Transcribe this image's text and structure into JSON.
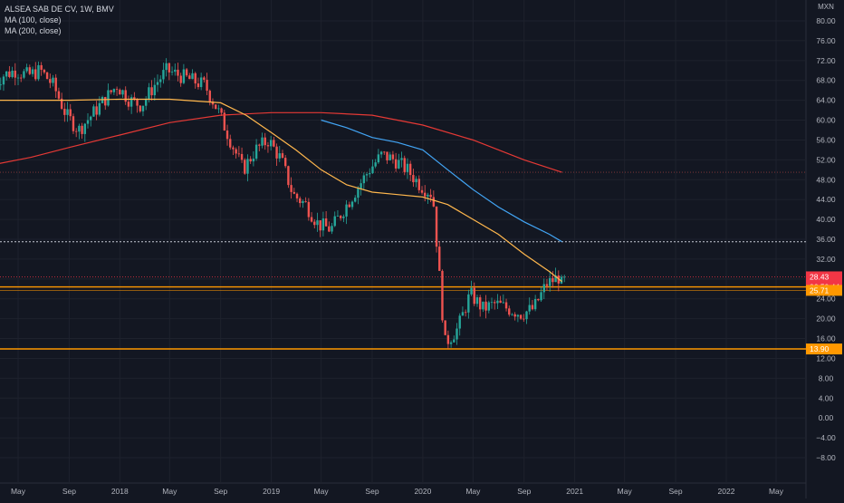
{
  "header": {
    "title": "ALSEA SAB DE CV, 1W, BMV",
    "indicator1": "MA (100, close)",
    "indicator2": "MA (200, close)"
  },
  "chart_data": {
    "type": "candlestick",
    "currency": "MXN",
    "y_ticks": [
      "80.00",
      "76.00",
      "72.00",
      "68.00",
      "64.00",
      "60.00",
      "56.00",
      "52.00",
      "48.00",
      "44.00",
      "40.00",
      "36.00",
      "32.00",
      "28.00",
      "24.00",
      "20.00",
      "16.00",
      "12.00",
      "8.00",
      "4.00",
      "0.00",
      "−4.00",
      "−8.00"
    ],
    "ylim": [
      -8,
      80
    ],
    "x_ticks": [
      {
        "label": "May",
        "date": "2017-05"
      },
      {
        "label": "Sep",
        "date": "2017-09"
      },
      {
        "label": "2018",
        "date": "2018-01"
      },
      {
        "label": "May",
        "date": "2018-05"
      },
      {
        "label": "Sep",
        "date": "2018-09"
      },
      {
        "label": "2019",
        "date": "2019-01"
      },
      {
        "label": "May",
        "date": "2019-05"
      },
      {
        "label": "Sep",
        "date": "2019-09"
      },
      {
        "label": "2020",
        "date": "2020-01"
      },
      {
        "label": "May",
        "date": "2020-05"
      },
      {
        "label": "Sep",
        "date": "2020-09"
      },
      {
        "label": "2021",
        "date": "2021-01"
      },
      {
        "label": "May",
        "date": "2021-05"
      },
      {
        "label": "Sep",
        "date": "2021-09"
      },
      {
        "label": "2022",
        "date": "2022-01"
      },
      {
        "label": "May",
        "date": "2022-05"
      }
    ],
    "price_path": [
      [
        "2017-03",
        66
      ],
      [
        "2017-04",
        69
      ],
      [
        "2017-05",
        70
      ],
      [
        "2017-06",
        69
      ],
      [
        "2017-07",
        70
      ],
      [
        "2017-08",
        67
      ],
      [
        "2017-09",
        61
      ],
      [
        "2017-10",
        58
      ],
      [
        "2017-11",
        61
      ],
      [
        "2017-12",
        64
      ],
      [
        "2018-01",
        67
      ],
      [
        "2018-02",
        64
      ],
      [
        "2018-03",
        63
      ],
      [
        "2018-04",
        67
      ],
      [
        "2018-05",
        70
      ],
      [
        "2018-06",
        69
      ],
      [
        "2018-07",
        68
      ],
      [
        "2018-08",
        67
      ],
      [
        "2018-09",
        62
      ],
      [
        "2018-10",
        56
      ],
      [
        "2018-11",
        50
      ],
      [
        "2018-12",
        54
      ],
      [
        "2019-01",
        56
      ],
      [
        "2019-02",
        52
      ],
      [
        "2019-03",
        45
      ],
      [
        "2019-04",
        43
      ],
      [
        "2019-05",
        39
      ],
      [
        "2019-06",
        38
      ],
      [
        "2019-07",
        42
      ],
      [
        "2019-08",
        46
      ],
      [
        "2019-09",
        50
      ],
      [
        "2019-10",
        53
      ],
      [
        "2019-11",
        52
      ],
      [
        "2019-12",
        50
      ],
      [
        "2020-01",
        47
      ],
      [
        "2020-02",
        45
      ],
      [
        "2020-03",
        15
      ],
      [
        "2020-04",
        18
      ],
      [
        "2020-05",
        25
      ],
      [
        "2020-06",
        22
      ],
      [
        "2020-07",
        23
      ],
      [
        "2020-08",
        22
      ],
      [
        "2020-09",
        21
      ],
      [
        "2020-10",
        22
      ],
      [
        "2020-11",
        27
      ],
      [
        "2020-12",
        28.43
      ]
    ],
    "ma100": [
      [
        "2017-03",
        64
      ],
      [
        "2017-09",
        64
      ],
      [
        "2018-01",
        64.2
      ],
      [
        "2018-05",
        64.2
      ],
      [
        "2018-09",
        63.5
      ],
      [
        "2018-11",
        61
      ],
      [
        "2019-01",
        57.5
      ],
      [
        "2019-03",
        54
      ],
      [
        "2019-05",
        50
      ],
      [
        "2019-07",
        47
      ],
      [
        "2019-09",
        45.5
      ],
      [
        "2019-11",
        45
      ],
      [
        "2020-01",
        44.5
      ],
      [
        "2020-03",
        43
      ],
      [
        "2020-05",
        40
      ],
      [
        "2020-07",
        37
      ],
      [
        "2020-09",
        33
      ],
      [
        "2020-11",
        29.5
      ],
      [
        "2020-12",
        27.5
      ]
    ],
    "ma200": [
      [
        "2017-03",
        51
      ],
      [
        "2017-06",
        52.5
      ],
      [
        "2017-09",
        54.5
      ],
      [
        "2018-01",
        57
      ],
      [
        "2018-05",
        59.5
      ],
      [
        "2018-09",
        61
      ],
      [
        "2019-01",
        61.5
      ],
      [
        "2019-05",
        61.5
      ],
      [
        "2019-09",
        61
      ],
      [
        "2020-01",
        59
      ],
      [
        "2020-05",
        56
      ],
      [
        "2020-09",
        52
      ],
      [
        "2020-12",
        49.5
      ]
    ],
    "ma100_late": [
      [
        "2019-05",
        60
      ],
      [
        "2019-07",
        58.5
      ],
      [
        "2019-09",
        56.5
      ],
      [
        "2019-11",
        55.5
      ],
      [
        "2020-01",
        54
      ],
      [
        "2020-03",
        50
      ],
      [
        "2020-05",
        46
      ],
      [
        "2020-07",
        42.5
      ],
      [
        "2020-09",
        39.5
      ],
      [
        "2020-11",
        37
      ],
      [
        "2020-12",
        35.5
      ]
    ],
    "levels": [
      {
        "label": "28.43",
        "value": 28.43,
        "color": "#f23645"
      },
      {
        "label": "06:50:44",
        "value": 26.4,
        "color": "#f23645"
      },
      {
        "label": "25.71",
        "value": 25.71,
        "color": "#ff9800"
      },
      {
        "label": "13.90",
        "value": 13.9,
        "color": "#ff9800"
      }
    ],
    "dotted_levels": [
      49.5,
      35.5
    ],
    "colors": {
      "up": "#26a69a",
      "down": "#ef5350",
      "ma_orange": "#ffb74d",
      "ma_blue": "#42a5f5",
      "ma_red": "#e53935",
      "hline": "#ff9800"
    }
  }
}
